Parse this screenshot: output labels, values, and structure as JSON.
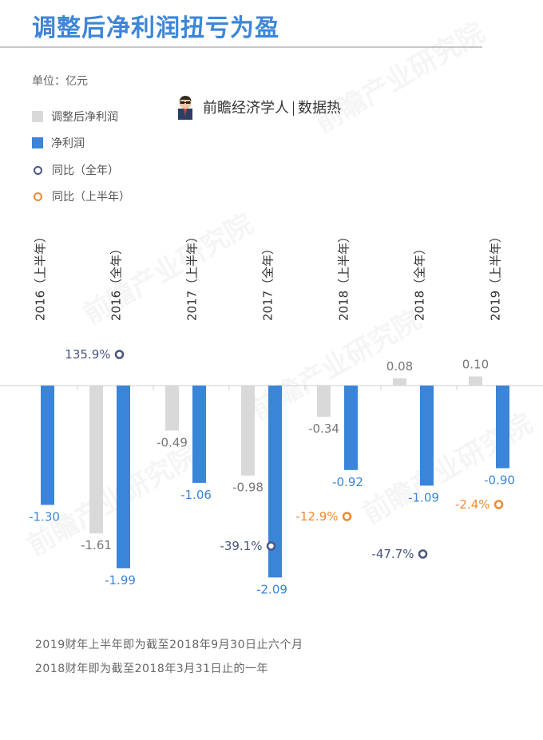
{
  "title": "调整后净利润扭亏为盈",
  "unit_label": "单位：亿元",
  "brand": {
    "name": "前瞻经济学人",
    "tag": "数据热"
  },
  "watermark": "前瞻产业研究院",
  "legend": [
    {
      "label": "调整后净利润",
      "marker": "square",
      "color": "#d9d9d9"
    },
    {
      "label": "净利润",
      "marker": "square",
      "color": "#3a85d8"
    },
    {
      "label": "同比（全年）",
      "marker": "ring",
      "color": "#4a5680"
    },
    {
      "label": "同比（上半年）",
      "marker": "ring",
      "color": "#ee8a2e"
    }
  ],
  "notes": [
    "2019财年上半年即为截至2018年9月30日止六个月",
    "2018财年即为截至2018年3月31日止的一年"
  ],
  "chart_data": {
    "type": "bar",
    "categories": [
      "2016（上半年）",
      "2016（全年）",
      "2017（上半年）",
      "2017（全年）",
      "2018（上半年）",
      "2018（全年）",
      "2019（上半年）"
    ],
    "series": [
      {
        "name": "调整后净利润",
        "color": "#d9d9d9",
        "values": [
          null,
          -1.61,
          -0.49,
          -0.98,
          -0.34,
          0.08,
          0.1
        ],
        "labels": [
          null,
          "-1.61",
          "-0.49",
          "-0.98",
          "-0.34",
          "0.08",
          "0.10"
        ]
      },
      {
        "name": "净利润",
        "color": "#3a85d8",
        "values": [
          -1.3,
          -1.99,
          -1.06,
          -2.09,
          -0.92,
          -1.09,
          -0.9
        ],
        "labels": [
          "-1.30",
          "-1.99",
          "-1.06",
          "-2.09",
          "-0.92",
          "-1.09",
          "-0.90"
        ]
      }
    ],
    "yoy": [
      {
        "name": "同比（全年）",
        "color": "#4a5680",
        "points": [
          {
            "category": 1,
            "value": 135.9,
            "label": "135.9%"
          },
          {
            "category": 3,
            "value": -39.1,
            "label": "-39.1%"
          },
          {
            "category": 5,
            "value": -47.7,
            "label": "-47.7%"
          }
        ]
      },
      {
        "name": "同比（上半年）",
        "color": "#ee8a2e",
        "points": [
          {
            "category": 4,
            "value": -12.9,
            "label": "-12.9%"
          },
          {
            "category": 6,
            "value": -2.4,
            "label": "-2.4%"
          }
        ]
      }
    ],
    "label_colors": {
      "adjusted": "#777777",
      "net": "#3a85d8"
    }
  }
}
